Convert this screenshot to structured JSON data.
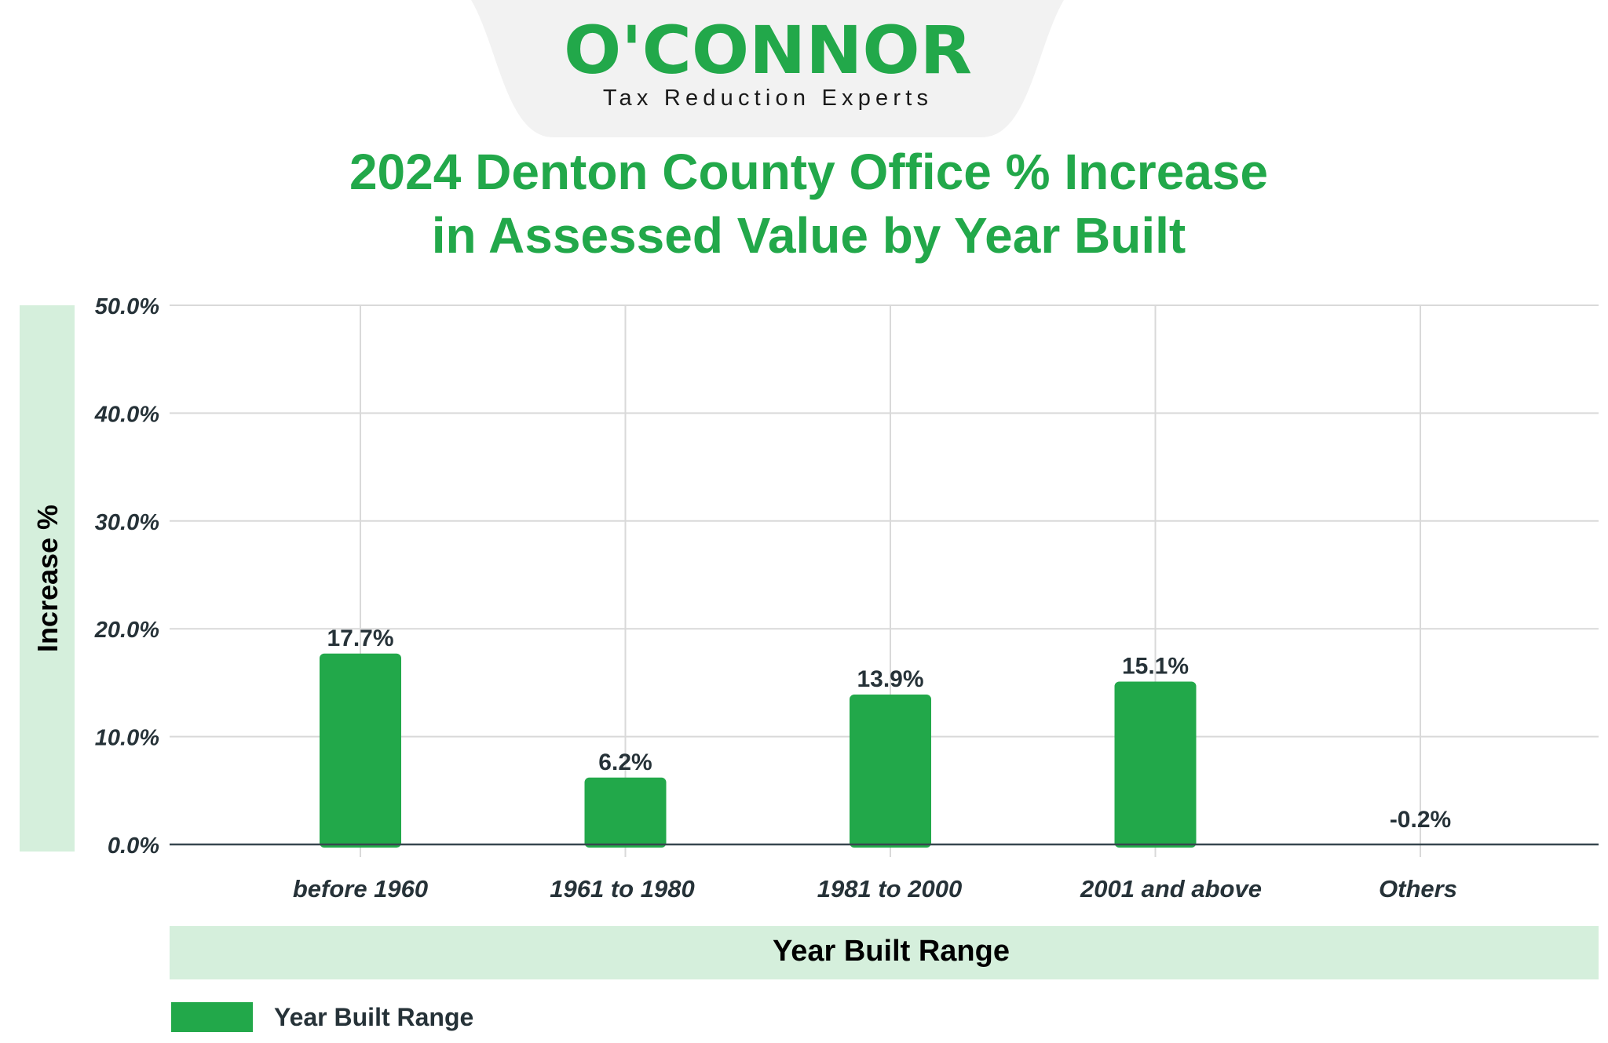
{
  "brand": {
    "name": "O'CONNOR",
    "tagline": "Tax Reduction Experts",
    "color": "#22a84a",
    "banner_color": "#f2f2f2"
  },
  "colors": {
    "bar": "#22a84a",
    "title": "#22a84a",
    "axis_band": "#d5efdc",
    "grid": "#d9d9d9",
    "axis_line": "#37474f",
    "text_dark": "#263238",
    "text_black": "#000000"
  },
  "chart_data": {
    "type": "bar",
    "title_lines": [
      "2024 Denton County Office % Increase",
      "in Assessed Value by Year Built"
    ],
    "categories": [
      "before 1960",
      "1961 to 1980",
      "1981 to 2000",
      "2001 and above",
      "Others"
    ],
    "series": [
      {
        "name": "Year Built Range",
        "values": [
          17.7,
          6.2,
          13.9,
          15.1,
          -0.2
        ],
        "labels": [
          "17.7%",
          "6.2%",
          "13.9%",
          "15.1%",
          "-0.2%"
        ]
      }
    ],
    "xlabel": "Year Built Range",
    "ylabel": "Increase %",
    "ylim": [
      0,
      50
    ],
    "yticks": [
      0,
      10,
      20,
      30,
      40,
      50
    ],
    "ytick_labels": [
      "0.0%",
      "10.0%",
      "20.0%",
      "30.0%",
      "40.0%",
      "50.0%"
    ],
    "grid": true,
    "legend": {
      "position": "bottom-left",
      "entries": [
        "Year Built Range"
      ]
    }
  }
}
